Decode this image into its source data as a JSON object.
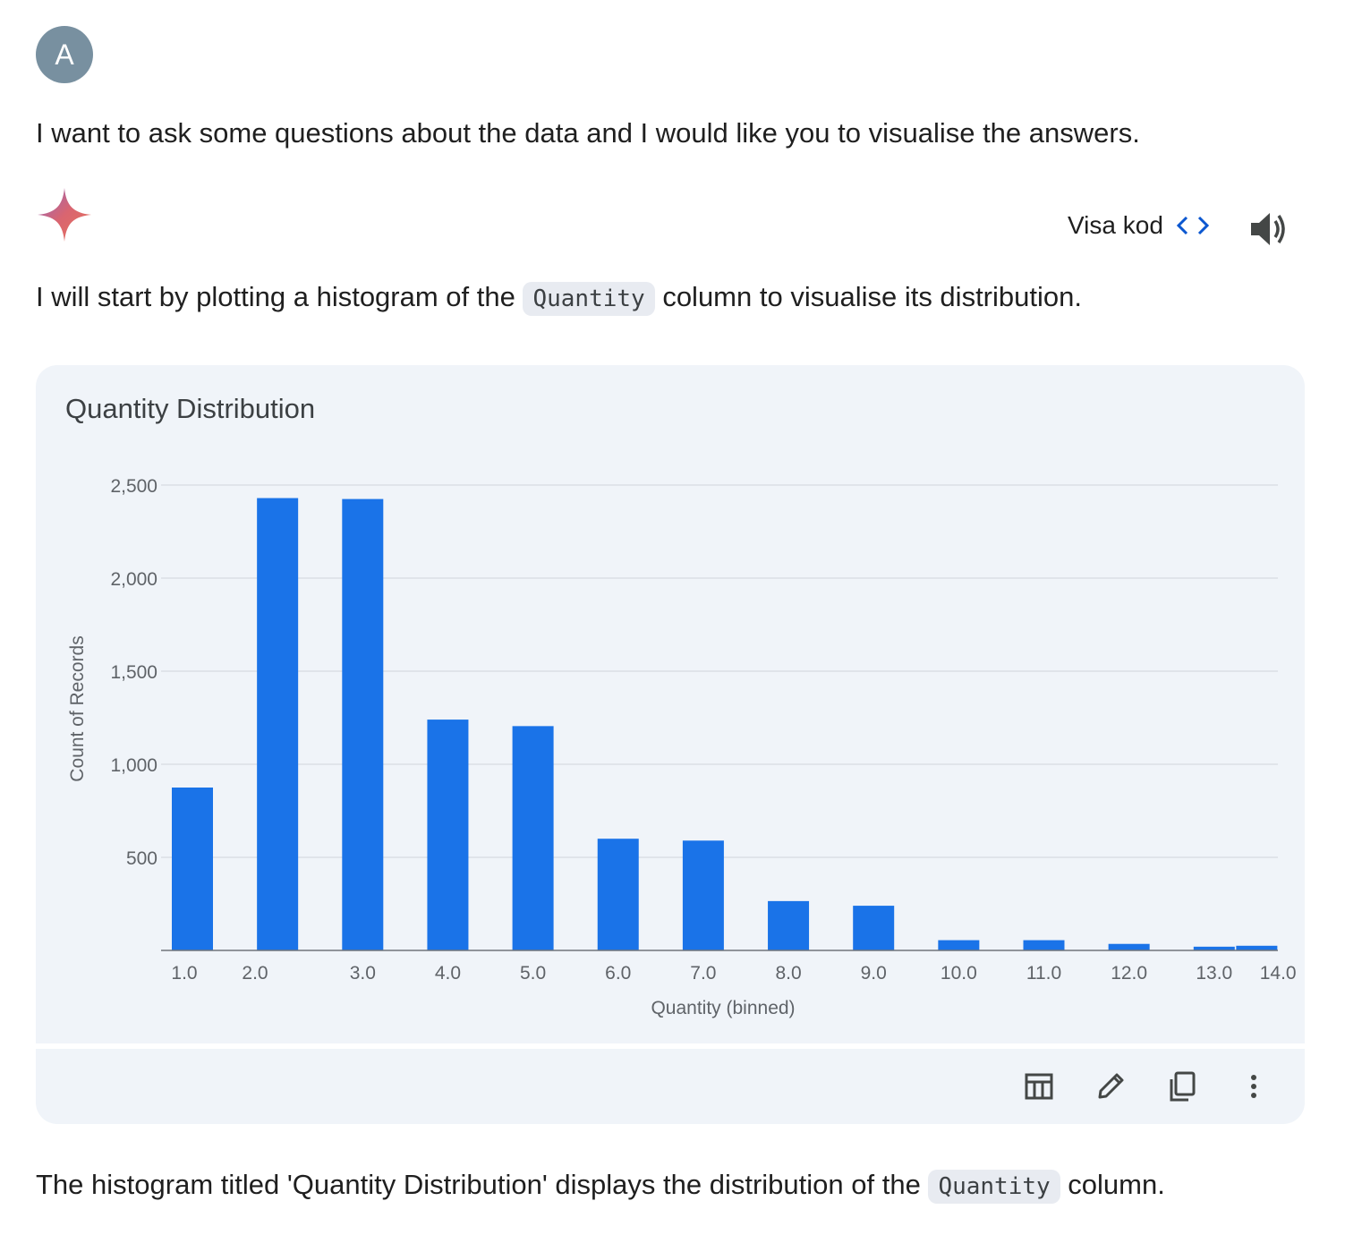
{
  "user": {
    "avatar_letter": "A",
    "message": "I want to ask some questions about the data and I would like you to visualise the answers."
  },
  "response": {
    "show_code_label": "Visa kod",
    "intro_before": "I will start by plotting a histogram of the ",
    "intro_code": "Quantity",
    "intro_after": " column to visualise its distribution.",
    "summary_before": "The histogram titled 'Quantity Distribution' displays the distribution of the ",
    "summary_code": "Quantity",
    "summary_after": " column."
  },
  "icons": {
    "assistant": "sparkle-icon",
    "code": "code-brackets-icon",
    "speaker": "speaker-icon",
    "table": "table-icon",
    "edit": "pencil-icon",
    "copy": "copy-icon",
    "more": "more-vert-icon"
  },
  "colors": {
    "bar": "#1a73e8",
    "card_bg": "#f0f4f9",
    "code_link": "#0b57d0"
  },
  "chart_data": {
    "type": "bar",
    "title": "Quantity Distribution",
    "xlabel": "Quantity (binned)",
    "ylabel": "Count of Records",
    "x_ticks": [
      "1.0",
      "2.0",
      "3.0",
      "4.0",
      "5.0",
      "6.0",
      "7.0",
      "8.0",
      "9.0",
      "10.0",
      "11.0",
      "12.0",
      "13.0",
      "14.0"
    ],
    "bins": [
      1,
      2,
      3,
      4,
      5,
      6,
      7,
      8,
      9,
      10,
      11,
      12,
      13,
      13.5
    ],
    "values": [
      875,
      2430,
      2425,
      1240,
      1205,
      600,
      590,
      265,
      240,
      55,
      55,
      35,
      20,
      25
    ],
    "ylim": [
      0,
      2500
    ],
    "y_ticks": [
      500,
      1000,
      1500,
      2000,
      2500
    ],
    "y_tick_labels": [
      "500",
      "1,000",
      "1,500",
      "2,000",
      "2,500"
    ],
    "grid": true,
    "legend": "none"
  }
}
